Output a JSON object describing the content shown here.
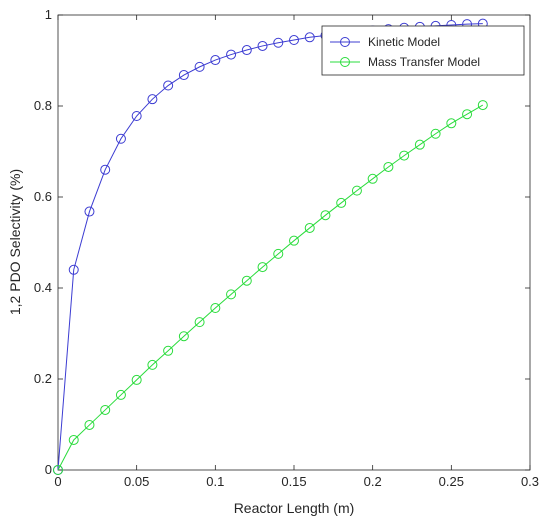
{
  "chart_data": {
    "type": "line",
    "xlabel": "Reactor Length (m)",
    "ylabel": "1,2 PDO Selectivity (%)",
    "xlim": [
      0,
      0.3
    ],
    "ylim": [
      0,
      1
    ],
    "xticks": [
      0,
      0.05,
      0.1,
      0.15,
      0.2,
      0.25,
      0.3
    ],
    "xtick_labels": [
      "0",
      "0.05",
      "0.1",
      "0.15",
      "0.2",
      "0.25",
      "0.3"
    ],
    "yticks": [
      0,
      0.2,
      0.4,
      0.6,
      0.8,
      1
    ],
    "ytick_labels": [
      "0",
      "0.2",
      "0.4",
      "0.6",
      "0.8",
      "1"
    ],
    "grid": false,
    "legend_position": "top-right",
    "x": [
      0,
      0.01,
      0.02,
      0.03,
      0.04,
      0.05,
      0.06,
      0.07,
      0.08,
      0.09,
      0.1,
      0.11,
      0.12,
      0.13,
      0.14,
      0.15,
      0.16,
      0.17,
      0.18,
      0.19,
      0.2,
      0.21,
      0.22,
      0.23,
      0.24,
      0.25,
      0.26,
      0.27
    ],
    "series": [
      {
        "name": "Kinetic Model",
        "color": "#3c3cd2",
        "marker": "circle",
        "values": [
          0,
          0.44,
          0.568,
          0.66,
          0.728,
          0.778,
          0.815,
          0.845,
          0.868,
          0.886,
          0.901,
          0.913,
          0.923,
          0.932,
          0.939,
          0.945,
          0.951,
          0.955,
          0.959,
          0.963,
          0.966,
          0.969,
          0.972,
          0.974,
          0.976,
          0.978,
          0.98,
          0.981
        ]
      },
      {
        "name": "Mass Transfer Model",
        "color": "#2adc3c",
        "marker": "circle",
        "values": [
          0,
          0.066,
          0.099,
          0.132,
          0.165,
          0.198,
          0.231,
          0.262,
          0.294,
          0.325,
          0.356,
          0.386,
          0.416,
          0.446,
          0.475,
          0.504,
          0.532,
          0.56,
          0.587,
          0.614,
          0.64,
          0.666,
          0.691,
          0.715,
          0.739,
          0.762,
          0.782,
          0.802
        ]
      }
    ]
  }
}
